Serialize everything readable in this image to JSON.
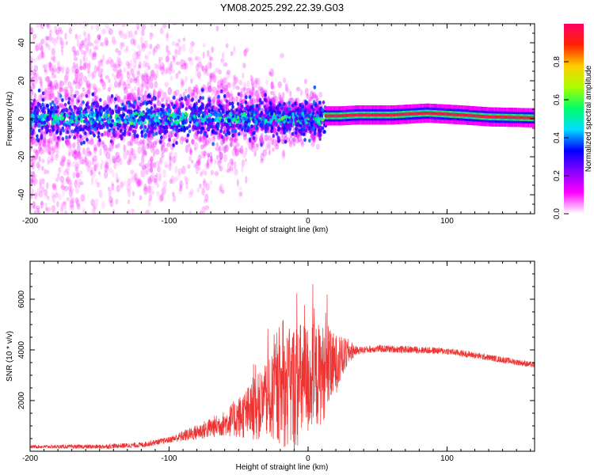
{
  "title": "YM08.2025.292.22.39.G03",
  "colors": {
    "snr_line": "#ee3333",
    "axis": "#000000",
    "colorbar_stops": [
      "#ffffff",
      "#ff00ff",
      "#8800ff",
      "#0000ff",
      "#00ddff",
      "#00ff66",
      "#aaff00",
      "#ffcc00",
      "#ff2200",
      "#ff0066"
    ]
  },
  "chart_data": [
    {
      "type": "heatmap",
      "name": "spectrogram",
      "xlabel": "Height of straight line (km)",
      "ylabel": "Frequency (Hz)",
      "xlim": [
        -200,
        163
      ],
      "ylim": [
        -50,
        50
      ],
      "xticks": [
        -200,
        -100,
        0,
        100
      ],
      "xtick_labels": [
        "-200",
        "-100",
        "0",
        "100"
      ],
      "yticks": [
        -40,
        -20,
        0,
        20,
        40
      ],
      "ytick_labels": [
        "-40",
        "-20",
        "0",
        "20",
        "40"
      ],
      "description_of_ridge": [
        {
          "x": 12,
          "y": 1.5
        },
        {
          "x": 22,
          "y": 1.5
        },
        {
          "x": 35,
          "y": 2.0
        },
        {
          "x": 60,
          "y": 2.0
        },
        {
          "x": 85,
          "y": 3.0
        },
        {
          "x": 110,
          "y": 2.0
        },
        {
          "x": 130,
          "y": 1.0
        },
        {
          "x": 160,
          "y": 0.5
        }
      ],
      "colorbar": {
        "label": "Normalized spectral amplitude",
        "range": [
          0,
          1
        ],
        "ticks": [
          0.0,
          0.2,
          0.4,
          0.6,
          0.8
        ],
        "tick_labels": [
          "0.0",
          "0.2",
          "0.4",
          "0.6",
          "0.8"
        ]
      }
    },
    {
      "type": "line",
      "name": "snr",
      "xlabel": "Height of straight line (km)",
      "ylabel": "SNR (10 * v/v)",
      "xlim": [
        -200,
        163
      ],
      "ylim": [
        0,
        7500
      ],
      "xticks": [
        -200,
        -100,
        0,
        100
      ],
      "xtick_labels": [
        "-200",
        "-100",
        "0",
        "100"
      ],
      "yticks": [
        2000,
        4000,
        6000
      ],
      "ytick_labels": [
        "2000",
        "4000",
        "6000"
      ],
      "envelope": [
        {
          "x": -200,
          "y": 180
        },
        {
          "x": -150,
          "y": 180
        },
        {
          "x": -120,
          "y": 250
        },
        {
          "x": -100,
          "y": 450
        },
        {
          "x": -80,
          "y": 750
        },
        {
          "x": -60,
          "y": 1100
        },
        {
          "x": -40,
          "y": 1600
        },
        {
          "x": -20,
          "y": 2300
        },
        {
          "x": 0,
          "y": 2800
        },
        {
          "x": 15,
          "y": 3200
        },
        {
          "x": 25,
          "y": 3700
        },
        {
          "x": 30,
          "y": 3950
        },
        {
          "x": 50,
          "y": 4050
        },
        {
          "x": 80,
          "y": 4000
        },
        {
          "x": 100,
          "y": 3950
        },
        {
          "x": 130,
          "y": 3700
        },
        {
          "x": 163,
          "y": 3400
        }
      ],
      "noise_amplitude": [
        {
          "x": -200,
          "y": 60
        },
        {
          "x": -100,
          "y": 120
        },
        {
          "x": -60,
          "y": 500
        },
        {
          "x": -30,
          "y": 1500
        },
        {
          "x": -10,
          "y": 2600
        },
        {
          "x": 10,
          "y": 2000
        },
        {
          "x": 25,
          "y": 800
        },
        {
          "x": 35,
          "y": 150
        },
        {
          "x": 163,
          "y": 120
        }
      ]
    }
  ]
}
